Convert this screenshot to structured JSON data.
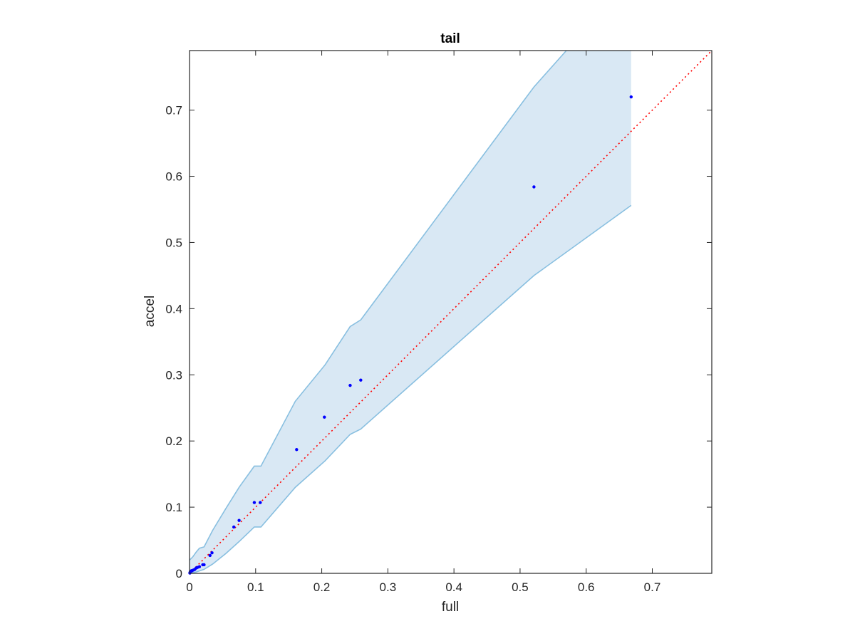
{
  "chart_data": {
    "type": "scatter",
    "title": "tail",
    "xlabel": "full",
    "ylabel": "accel",
    "xlim": [
      0,
      0.79
    ],
    "ylim": [
      0,
      0.79
    ],
    "xticks": [
      0,
      0.1,
      0.2,
      0.3,
      0.4,
      0.5,
      0.6,
      0.7
    ],
    "yticks": [
      0,
      0.1,
      0.2,
      0.3,
      0.4,
      0.5,
      0.6,
      0.7
    ],
    "xtick_labels": [
      "0",
      "0.1",
      "0.2",
      "0.3",
      "0.4",
      "0.5",
      "0.6",
      "0.7"
    ],
    "ytick_labels": [
      "0",
      "0.1",
      "0.2",
      "0.3",
      "0.4",
      "0.5",
      "0.6",
      "0.7"
    ],
    "grid": false,
    "series": [
      {
        "type": "scatter",
        "color": "#0000ff",
        "points": [
          [
            0.0005,
            0.0005
          ],
          [
            0.001,
            0.002
          ],
          [
            0.002,
            0.003
          ],
          [
            0.003,
            0.004
          ],
          [
            0.004,
            0.004
          ],
          [
            0.006,
            0.005
          ],
          [
            0.008,
            0.006
          ],
          [
            0.01,
            0.008
          ],
          [
            0.012,
            0.009
          ],
          [
            0.015,
            0.01
          ],
          [
            0.02,
            0.013
          ],
          [
            0.022,
            0.013
          ],
          [
            0.031,
            0.027
          ],
          [
            0.034,
            0.031
          ],
          [
            0.067,
            0.07
          ],
          [
            0.075,
            0.08
          ],
          [
            0.098,
            0.107
          ],
          [
            0.107,
            0.107
          ],
          [
            0.162,
            0.187
          ],
          [
            0.204,
            0.236
          ],
          [
            0.243,
            0.284
          ],
          [
            0.259,
            0.292
          ],
          [
            0.521,
            0.584
          ],
          [
            0.668,
            0.72
          ]
        ]
      },
      {
        "type": "reference-line",
        "color": "#ff0000",
        "style": "dotted",
        "points": [
          [
            0,
            0
          ],
          [
            0.79,
            0.79
          ]
        ]
      }
    ],
    "band": {
      "fill": "#d9e8f4",
      "edge": "#88bfe0",
      "upper": [
        [
          0,
          0.02
        ],
        [
          0.005,
          0.025
        ],
        [
          0.01,
          0.032
        ],
        [
          0.015,
          0.038
        ],
        [
          0.022,
          0.04
        ],
        [
          0.035,
          0.065
        ],
        [
          0.055,
          0.098
        ],
        [
          0.075,
          0.13
        ],
        [
          0.098,
          0.162
        ],
        [
          0.108,
          0.162
        ],
        [
          0.16,
          0.26
        ],
        [
          0.205,
          0.315
        ],
        [
          0.243,
          0.373
        ],
        [
          0.259,
          0.383
        ],
        [
          0.521,
          0.735
        ],
        [
          0.57,
          0.79
        ]
      ],
      "right_x": 0.668,
      "right_top": 0.79,
      "lower": [
        [
          0,
          0
        ],
        [
          0.01,
          0.002
        ],
        [
          0.022,
          0.006
        ],
        [
          0.035,
          0.014
        ],
        [
          0.055,
          0.03
        ],
        [
          0.075,
          0.048
        ],
        [
          0.098,
          0.07
        ],
        [
          0.108,
          0.07
        ],
        [
          0.16,
          0.13
        ],
        [
          0.205,
          0.17
        ],
        [
          0.243,
          0.21
        ],
        [
          0.259,
          0.218
        ],
        [
          0.521,
          0.45
        ],
        [
          0.668,
          0.556
        ]
      ]
    }
  }
}
